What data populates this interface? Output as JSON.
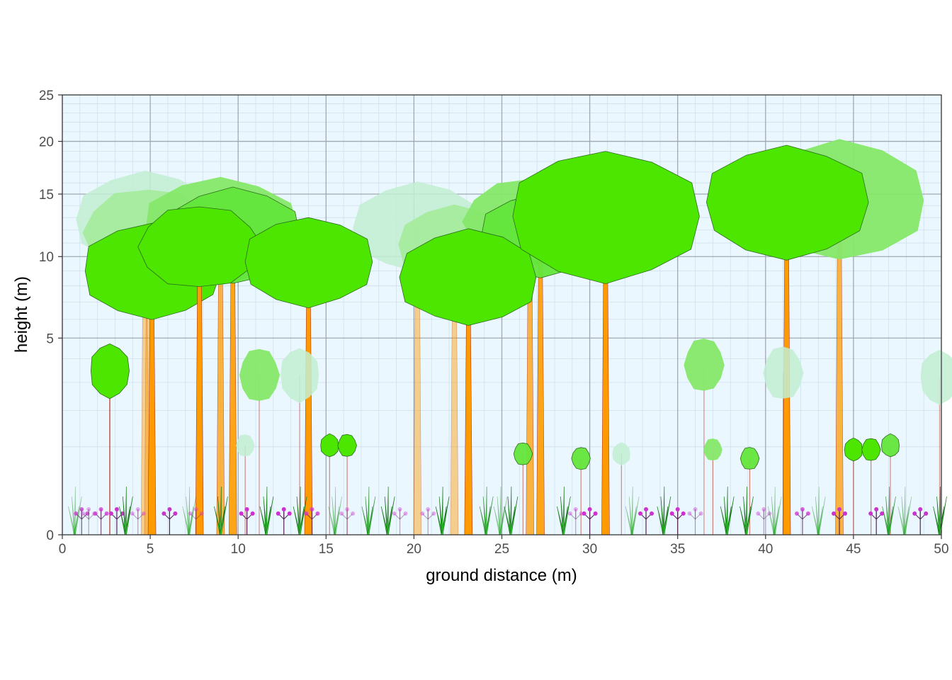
{
  "chart_data": {
    "type": "scatter",
    "title": "",
    "xlabel": "ground distance (m)",
    "ylabel": "height (m)",
    "xlim": [
      0,
      50
    ],
    "ylim": [
      0,
      25
    ],
    "y_scale": "sqrt",
    "grid": true,
    "x_ticks": [
      "0",
      "5",
      "10",
      "15",
      "20",
      "25",
      "30",
      "35",
      "40",
      "45",
      "50"
    ],
    "y_ticks": [
      "0",
      "5",
      "10",
      "15",
      "20",
      "25"
    ],
    "colors": {
      "panel_bg": "#ebf7ff",
      "major_grid": "#a0a9b2",
      "minor_grid": "#cfe0ec",
      "crown_near": "#4ce600",
      "crown_mid": "#63e63b",
      "crown_far": "#86e86a",
      "crown_back": "#a3eb9a",
      "crown_faint": "#c2efd2",
      "trunk": "#ff9b00",
      "trunk_edge": "#8b0000",
      "flower": "#cc33cc",
      "grass": "#33dd33"
    },
    "series": [
      {
        "name": "",
        "kind": "trees",
        "points": [
          {
            "x": 4.7,
            "y": 17.0,
            "w": 8.0,
            "layer": "faint"
          },
          {
            "x": 4.9,
            "y": 15.5,
            "w": 7.5,
            "layer": "back"
          },
          {
            "x": 9.0,
            "y": 16.5,
            "w": 9.0,
            "layer": "far"
          },
          {
            "x": 9.7,
            "y": 15.5,
            "w": 8.0,
            "layer": "mid"
          },
          {
            "x": 5.1,
            "y": 12.5,
            "w": 8.0,
            "layer": "near"
          },
          {
            "x": 7.8,
            "y": 14.0,
            "w": 7.0,
            "layer": "near"
          },
          {
            "x": 14.0,
            "y": 13.0,
            "w": 7.5,
            "layer": "near"
          },
          {
            "x": 20.2,
            "y": 16.0,
            "w": 7.5,
            "layer": "faint"
          },
          {
            "x": 22.3,
            "y": 14.0,
            "w": 6.5,
            "layer": "back"
          },
          {
            "x": 26.6,
            "y": 16.5,
            "w": 7.5,
            "layer": "far"
          },
          {
            "x": 27.2,
            "y": 15.0,
            "w": 7.0,
            "layer": "mid"
          },
          {
            "x": 23.1,
            "y": 12.0,
            "w": 8.0,
            "layer": "near"
          },
          {
            "x": 30.9,
            "y": 19.0,
            "w": 11.0,
            "layer": "near"
          },
          {
            "x": 44.2,
            "y": 20.0,
            "w": 10.0,
            "layer": "far"
          },
          {
            "x": 41.2,
            "y": 19.5,
            "w": 9.5,
            "layer": "near"
          }
        ]
      },
      {
        "name": "",
        "kind": "saplings",
        "points": [
          {
            "x": 2.7,
            "y": 4.7,
            "layer": "near"
          },
          {
            "x": 11.2,
            "y": 4.5,
            "layer": "far"
          },
          {
            "x": 13.5,
            "y": 4.5,
            "layer": "faint"
          },
          {
            "x": 36.5,
            "y": 5.0,
            "layer": "far"
          },
          {
            "x": 41.0,
            "y": 4.6,
            "layer": "faint"
          },
          {
            "x": 49.9,
            "y": 4.4,
            "layer": "faint"
          }
        ]
      },
      {
        "name": "",
        "kind": "shrubs",
        "points": [
          {
            "x": 10.4,
            "y": 1.2,
            "layer": "faint"
          },
          {
            "x": 15.2,
            "y": 1.2,
            "layer": "near"
          },
          {
            "x": 16.2,
            "y": 1.2,
            "layer": "near"
          },
          {
            "x": 26.2,
            "y": 1.0,
            "layer": "mid"
          },
          {
            "x": 29.5,
            "y": 0.9,
            "layer": "mid"
          },
          {
            "x": 31.8,
            "y": 1.0,
            "layer": "faint"
          },
          {
            "x": 37.0,
            "y": 1.1,
            "layer": "far"
          },
          {
            "x": 39.1,
            "y": 0.9,
            "layer": "mid"
          },
          {
            "x": 45.0,
            "y": 1.1,
            "layer": "near"
          },
          {
            "x": 46.0,
            "y": 1.1,
            "layer": "near"
          },
          {
            "x": 47.1,
            "y": 1.2,
            "layer": "mid"
          }
        ]
      },
      {
        "name": "",
        "kind": "understory",
        "points": [
          {
            "x": 0.7,
            "kind": "grass",
            "layer": "faint"
          },
          {
            "x": 1.1,
            "kind": "flower",
            "layer": "mid"
          },
          {
            "x": 1.5,
            "kind": "flower",
            "layer": "faint"
          },
          {
            "x": 2.2,
            "kind": "flower",
            "layer": "mid"
          },
          {
            "x": 3.1,
            "kind": "flower",
            "layer": "near"
          },
          {
            "x": 3.6,
            "kind": "grass",
            "layer": "near"
          },
          {
            "x": 4.3,
            "kind": "flower",
            "layer": "faint"
          },
          {
            "x": 6.1,
            "kind": "flower",
            "layer": "near"
          },
          {
            "x": 7.2,
            "kind": "grass",
            "layer": "faint"
          },
          {
            "x": 7.6,
            "kind": "flower",
            "layer": "faint"
          },
          {
            "x": 9.0,
            "kind": "grass",
            "layer": "near"
          },
          {
            "x": 10.5,
            "kind": "flower",
            "layer": "near"
          },
          {
            "x": 11.6,
            "kind": "grass",
            "layer": "near"
          },
          {
            "x": 12.6,
            "kind": "flower",
            "layer": "near"
          },
          {
            "x": 13.5,
            "kind": "grass",
            "layer": "near"
          },
          {
            "x": 14.2,
            "kind": "flower",
            "layer": "mid"
          },
          {
            "x": 15.5,
            "kind": "grass",
            "layer": "faint"
          },
          {
            "x": 16.2,
            "kind": "flower",
            "layer": "faint"
          },
          {
            "x": 17.4,
            "kind": "grass",
            "layer": "mid"
          },
          {
            "x": 18.5,
            "kind": "grass",
            "layer": "near"
          },
          {
            "x": 19.2,
            "kind": "flower",
            "layer": "faint"
          },
          {
            "x": 20.8,
            "kind": "flower",
            "layer": "faint"
          },
          {
            "x": 21.6,
            "kind": "grass",
            "layer": "near"
          },
          {
            "x": 24.1,
            "kind": "grass",
            "layer": "mid"
          },
          {
            "x": 24.9,
            "kind": "grass",
            "layer": "faint"
          },
          {
            "x": 25.5,
            "kind": "grass",
            "layer": "near"
          },
          {
            "x": 28.5,
            "kind": "grass",
            "layer": "near"
          },
          {
            "x": 29.2,
            "kind": "flower",
            "layer": "faint"
          },
          {
            "x": 30.0,
            "kind": "flower",
            "layer": "near"
          },
          {
            "x": 32.4,
            "kind": "grass",
            "layer": "faint"
          },
          {
            "x": 33.2,
            "kind": "flower",
            "layer": "near"
          },
          {
            "x": 34.2,
            "kind": "grass",
            "layer": "near"
          },
          {
            "x": 35.0,
            "kind": "flower",
            "layer": "near"
          },
          {
            "x": 36.0,
            "kind": "flower",
            "layer": "faint"
          },
          {
            "x": 37.8,
            "kind": "grass",
            "layer": "near"
          },
          {
            "x": 38.9,
            "kind": "grass",
            "layer": "near"
          },
          {
            "x": 39.9,
            "kind": "flower",
            "layer": "faint"
          },
          {
            "x": 40.5,
            "kind": "grass",
            "layer": "faint"
          },
          {
            "x": 42.1,
            "kind": "flower",
            "layer": "mid"
          },
          {
            "x": 43.0,
            "kind": "grass",
            "layer": "faint"
          },
          {
            "x": 44.2,
            "kind": "flower",
            "layer": "near"
          },
          {
            "x": 46.3,
            "kind": "flower",
            "layer": "near"
          },
          {
            "x": 47.0,
            "kind": "grass",
            "layer": "mid"
          },
          {
            "x": 47.9,
            "kind": "grass",
            "layer": "faint"
          },
          {
            "x": 48.8,
            "kind": "flower",
            "layer": "near"
          },
          {
            "x": 49.9,
            "kind": "grass",
            "layer": "near"
          }
        ]
      }
    ]
  }
}
